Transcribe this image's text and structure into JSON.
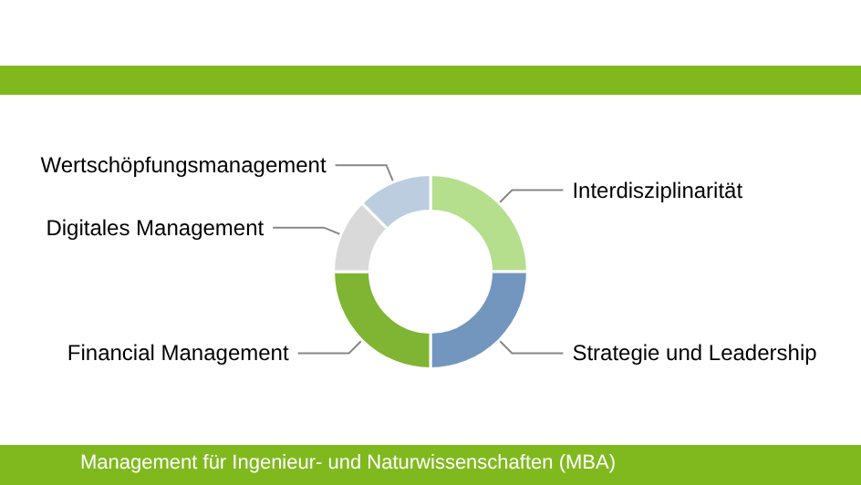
{
  "chart_data": {
    "type": "donut",
    "categories": [
      "Interdisziplinarität",
      "Strategie und Leadership",
      "Financial Management",
      "Digitales Management",
      "Wertschöpfungsmanagement"
    ],
    "values": [
      25,
      25,
      25,
      12.5,
      12.5
    ],
    "colors": [
      "#b5df8c",
      "#7396bf",
      "#7fb532",
      "#d9d9d9",
      "#bccddf"
    ],
    "legend": false,
    "annotations": [
      "Management für Ingenieur- und Naturwissenschaften (MBA)"
    ]
  }
}
